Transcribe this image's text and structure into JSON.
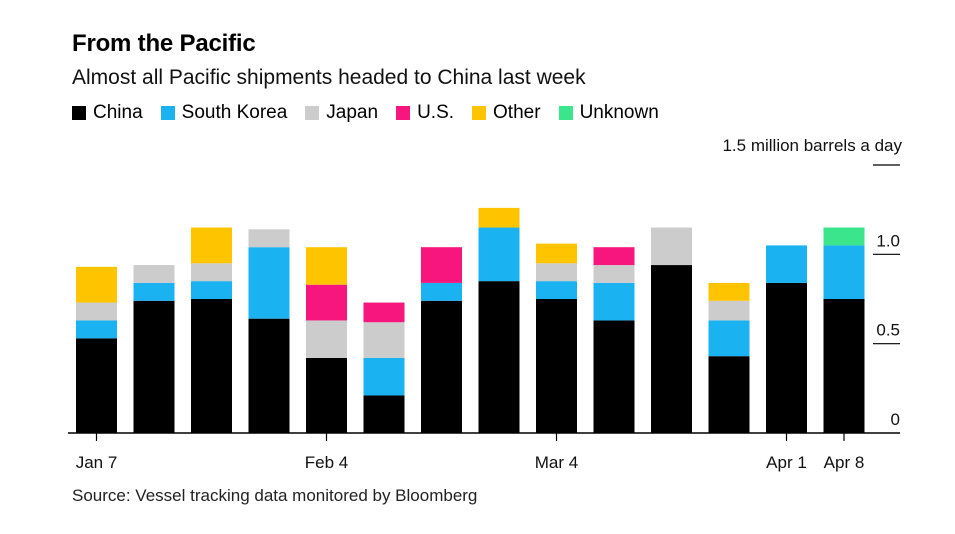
{
  "title": "From the Pacific",
  "subtitle": "Almost all Pacific shipments headed to China last week",
  "source": "Source: Vessel tracking data monitored by Bloomberg",
  "colors": {
    "China": "#000000",
    "South Korea": "#1ab2f0",
    "Japan": "#cccccc",
    "U.S.": "#f7157e",
    "Other": "#ffc400",
    "Unknown": "#3ae58c"
  },
  "chart_data": {
    "type": "bar",
    "stacked": true,
    "unit_label": "1.5 million barrels a day",
    "ylim": [
      0,
      1.5
    ],
    "yticks": [
      {
        "value": 0,
        "label": "0"
      },
      {
        "value": 0.5,
        "label": "0.5"
      },
      {
        "value": 1.0,
        "label": "1.0"
      },
      {
        "value": 1.5,
        "label": ""
      }
    ],
    "x_tick_labels": [
      {
        "index": 0,
        "label": "Jan 7"
      },
      {
        "index": 4,
        "label": "Feb 4"
      },
      {
        "index": 8,
        "label": "Mar 4"
      },
      {
        "index": 12,
        "label": "Apr 1"
      },
      {
        "index": 13,
        "label": "Apr 8"
      }
    ],
    "categories": [
      "Jan 7",
      "",
      "",
      "",
      "Feb 4",
      "",
      "",
      "",
      "Mar 4",
      "",
      "",
      "",
      "Apr 1",
      "Apr 8"
    ],
    "series": [
      {
        "name": "China",
        "values": [
          0.53,
          0.74,
          0.75,
          0.64,
          0.42,
          0.21,
          0.74,
          0.85,
          0.75,
          0.63,
          0.94,
          0.43,
          0.84,
          0.75
        ]
      },
      {
        "name": "South Korea",
        "values": [
          0.1,
          0.1,
          0.1,
          0.4,
          0.0,
          0.21,
          0.1,
          0.3,
          0.1,
          0.21,
          0.0,
          0.2,
          0.21,
          0.3
        ]
      },
      {
        "name": "Japan",
        "values": [
          0.1,
          0.1,
          0.1,
          0.1,
          0.21,
          0.2,
          0.0,
          0.0,
          0.1,
          0.1,
          0.21,
          0.11,
          0.0,
          0.0
        ]
      },
      {
        "name": "U.S.",
        "values": [
          0.0,
          0.0,
          0.0,
          0.0,
          0.2,
          0.11,
          0.2,
          0.0,
          0.0,
          0.1,
          0.0,
          0.0,
          0.0,
          0.0
        ]
      },
      {
        "name": "Other",
        "values": [
          0.2,
          0.0,
          0.2,
          0.0,
          0.21,
          0.0,
          0.0,
          0.11,
          0.11,
          0.0,
          0.0,
          0.1,
          0.0,
          0.0
        ]
      },
      {
        "name": "Unknown",
        "values": [
          0.0,
          0.0,
          0.0,
          0.0,
          0.0,
          0.0,
          0.0,
          0.0,
          0.0,
          0.0,
          0.0,
          0.0,
          0.0,
          0.1
        ]
      }
    ],
    "grid": false,
    "legend_position": "top-left"
  }
}
